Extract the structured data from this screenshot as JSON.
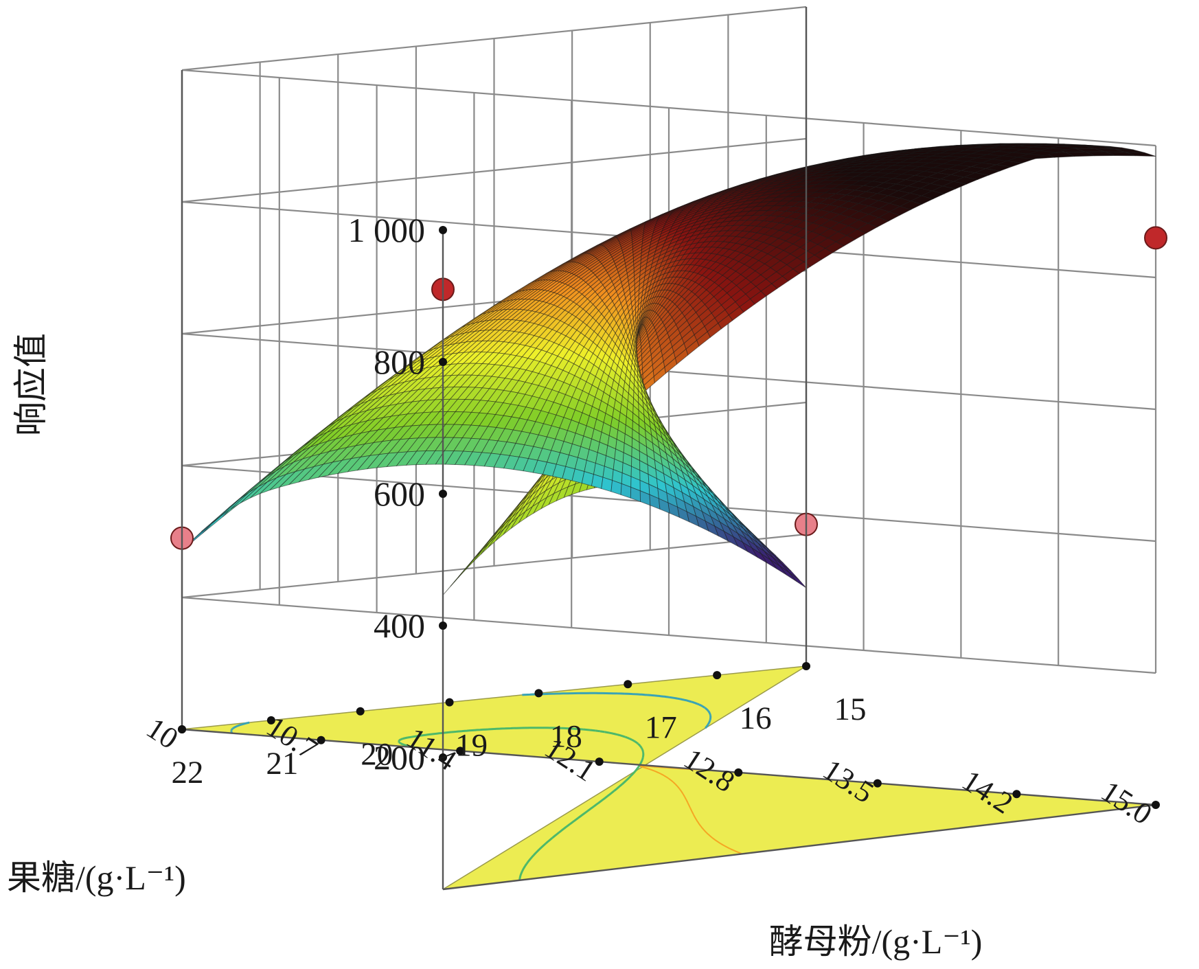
{
  "chart_data": {
    "type": "surface3d",
    "zlabel": "响应值",
    "xlabel": "酵母粉/(g·L⁻¹)",
    "ylabel": "果糖/(g·L⁻¹)",
    "zticks": [
      "1 000",
      "800",
      "600",
      "400",
      "200"
    ],
    "zlim": [
      0,
      1000
    ],
    "xticks": [
      "22",
      "21",
      "20",
      "19",
      "18",
      "17",
      "16",
      "15"
    ],
    "xlim": [
      15,
      22
    ],
    "yticks": [
      "15.0",
      "14.2",
      "13.5",
      "12.8",
      "12.1",
      "11.4",
      "10.7",
      "10"
    ],
    "ylim": [
      10,
      15
    ],
    "design_points": [
      {
        "x": 22,
        "y": 10,
        "z": 290
      },
      {
        "x": 22,
        "y": 15,
        "z": 860
      },
      {
        "x": 15,
        "y": 15,
        "z": 910
      },
      {
        "x": 15,
        "y": 10,
        "z": 215
      }
    ],
    "surface_peak": {
      "x": 21,
      "y": 14.5,
      "z": 945
    },
    "colormap": [
      "#3a1f6e",
      "#2fc4cf",
      "#7fcd28",
      "#eef02a",
      "#f08c1e",
      "#8a1410",
      "#1a0a0a"
    ],
    "floor_color": "#ecec52",
    "contour_colors": [
      "#f5a623",
      "#4db86a",
      "#3aa3b5"
    ]
  }
}
